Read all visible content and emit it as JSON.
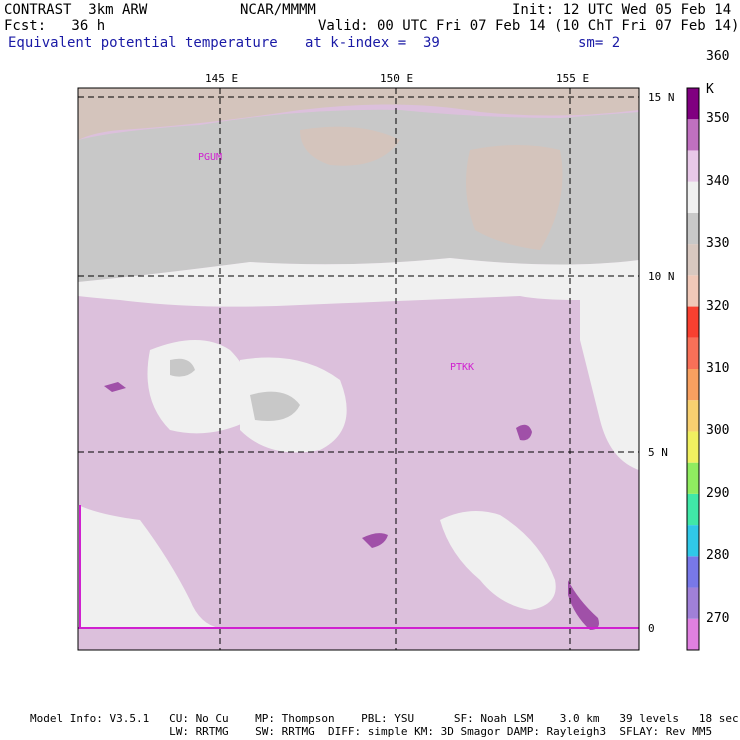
{
  "header": {
    "model": "CONTRAST  3km ARW",
    "center": "NCAR/MMMM",
    "init": "Init: 12 UTC Wed 05 Feb 14",
    "fcst": "Fcst:   36 h",
    "valid": "Valid: 00 UTC Fri 07 Feb 14 (10 ChT Fri 07 Feb 14)",
    "field": "Equivalent potential temperature",
    "level": "at k-index =  39",
    "smooth": "sm= 2"
  },
  "map": {
    "lon_labels": [
      "145 E",
      "150 E",
      "155 E"
    ],
    "lat_labels": [
      "15 N",
      "10 N",
      "5 N",
      "0"
    ],
    "stations": [
      "PGUM",
      "PTKK"
    ]
  },
  "colorbar": {
    "unit": "K",
    "levels": [
      "270",
      "280",
      "290",
      "300",
      "310",
      "320",
      "330",
      "340",
      "350",
      "360"
    ],
    "colors": [
      "#e080e0",
      "#a080d8",
      "#7878e8",
      "#30c8e8",
      "#40e8a8",
      "#90ec60",
      "#f0f060",
      "#f8d070",
      "#f8a060",
      "#f87058",
      "#f84030",
      "#f0c8b8",
      "#d8c8c0",
      "#c8c8c8",
      "#f0f0f0",
      "#e8c8e8",
      "#c070c0",
      "#800080"
    ]
  },
  "footer": {
    "line1": "Model Info: V3.5.1   CU: No Cu    MP: Thompson    PBL: YSU      SF: Noah LSM    3.0 km   39 levels   18 sec",
    "line2": "                     LW: RRTMG    SW: RRTMG  DIFF: simple KM: 3D Smagor DAMP: Rayleigh3  SFLAY: Rev MM5"
  }
}
